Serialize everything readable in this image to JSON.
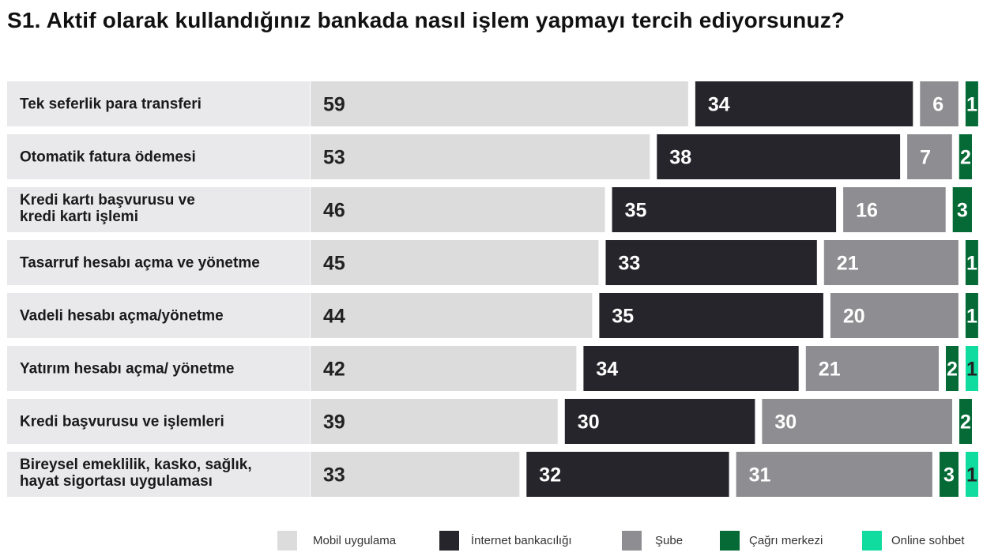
{
  "title": "S1. Aktif olarak kullandığınız bankada nasıl işlem yapmayı tercih ediyorsunuz?",
  "legend": [
    {
      "label": "Mobil uygulama",
      "color": "#dcdcdc"
    },
    {
      "label": "İnternet bankacılığı",
      "color": "#26252c"
    },
    {
      "label": "Şube",
      "color": "#8e8d91"
    },
    {
      "label": "Çağrı merkezi",
      "color": "#056a36"
    },
    {
      "label": "Online sohbet",
      "color": "#11dca0"
    }
  ],
  "chart_data": {
    "type": "bar",
    "orientation": "horizontal",
    "stacked": true,
    "title": "S1. Aktif olarak kullandığınız bankada nasıl işlem yapmayı tercih ediyorsunuz?",
    "categories": [
      "Tek seferlik para transferi",
      "Otomatik fatura ödemesi",
      "Kredi kartı başvurusu ve\nkredi kartı işlemi",
      "Tasarruf hesabı açma ve yönetme",
      "Vadeli hesabı açma/yönetme",
      "Yatırım hesabı açma/ yönetme",
      "Kredi başvurusu ve işlemleri",
      "Bireysel emeklilik, kasko, sağlık,\nhayat sigortası uygulaması"
    ],
    "series": [
      {
        "name": "Mobil uygulama",
        "color": "#dcdcdc",
        "values": [
          59,
          53,
          46,
          45,
          44,
          42,
          39,
          33
        ]
      },
      {
        "name": "İnternet bankacılığı",
        "color": "#26252c",
        "values": [
          34,
          38,
          35,
          33,
          35,
          34,
          30,
          32
        ]
      },
      {
        "name": "Şube",
        "color": "#8e8d91",
        "values": [
          6,
          7,
          16,
          21,
          20,
          21,
          30,
          31
        ]
      },
      {
        "name": "Çağrı merkezi",
        "color": "#056a36",
        "values": [
          1,
          2,
          3,
          1,
          1,
          2,
          2,
          3
        ]
      },
      {
        "name": "Online sohbet",
        "color": "#11dca0",
        "values": [
          0,
          0,
          0,
          0,
          0,
          1,
          0,
          1
        ]
      }
    ],
    "legend_position": "bottom-right",
    "grid": false
  }
}
